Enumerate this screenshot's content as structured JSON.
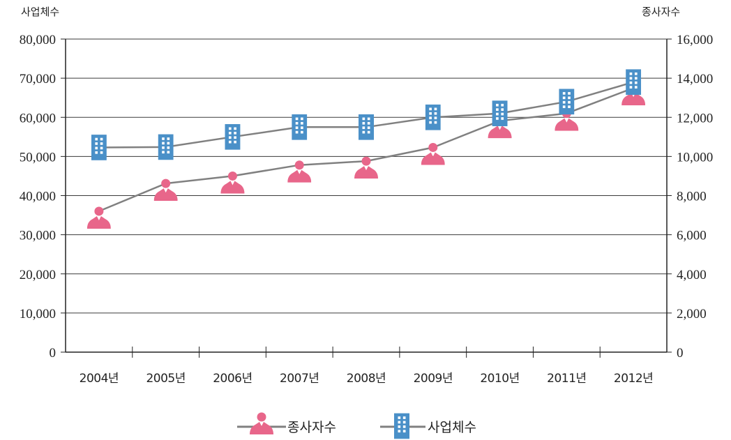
{
  "chart_data": {
    "type": "line",
    "categories": [
      "2004년",
      "2005년",
      "2006년",
      "2007년",
      "2008년",
      "2009년",
      "2010년",
      "2011년",
      "2012년"
    ],
    "series": [
      {
        "name": "종사자수",
        "axis": "right",
        "marker": "person-icon",
        "color": "#e8668a",
        "values": [
          7200,
          8620,
          9000,
          9560,
          9760,
          10460,
          11820,
          12200,
          13500
        ]
      },
      {
        "name": "사업체수",
        "axis": "left",
        "marker": "building-icon",
        "color": "#4a90c8",
        "values": [
          52300,
          52400,
          55000,
          57500,
          57500,
          60000,
          61000,
          64000,
          69000
        ]
      }
    ],
    "left_axis": {
      "title": "사업체수",
      "ylim": [
        0,
        80000
      ],
      "ticks": [
        "0",
        "10,000",
        "20,000",
        "30,000",
        "40,000",
        "50,000",
        "60,000",
        "70,000",
        "80,000"
      ]
    },
    "right_axis": {
      "title": "종사자수",
      "ylim": [
        0,
        16000
      ],
      "ticks": [
        "0",
        "2,000",
        "4,000",
        "6,000",
        "8,000",
        "10,000",
        "12,000",
        "14,000",
        "16,000"
      ]
    },
    "grid": true,
    "legend": "bottom-center",
    "line_color": "#808080"
  }
}
